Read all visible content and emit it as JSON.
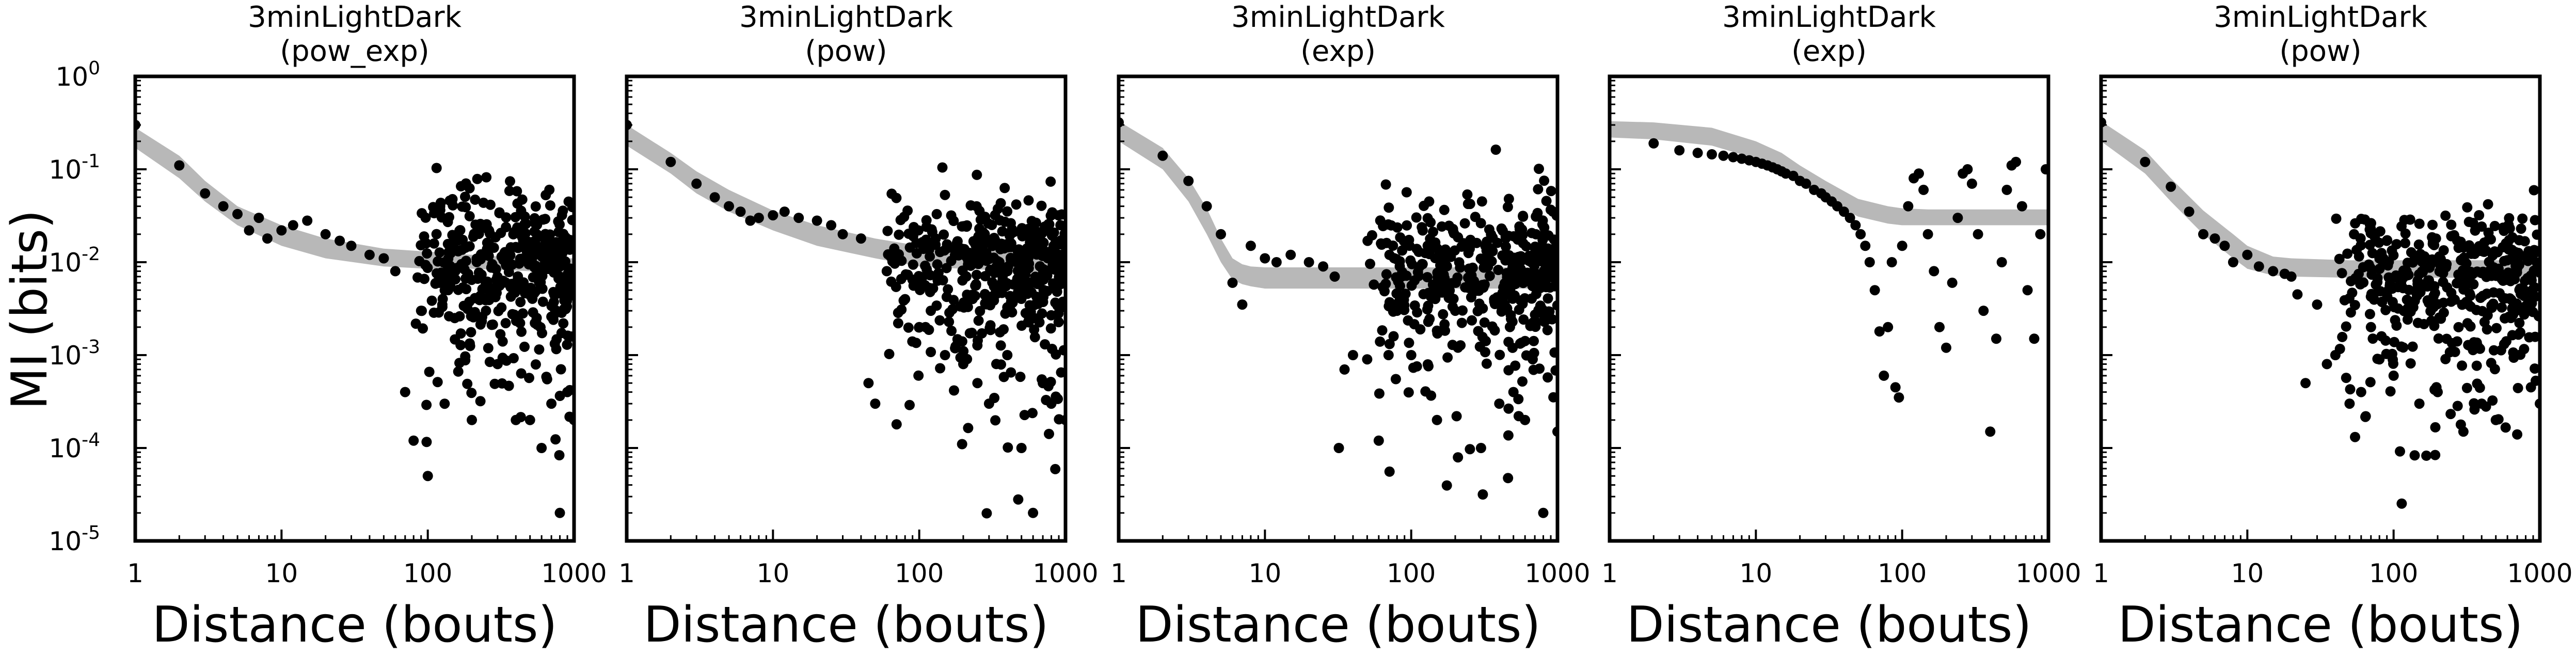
{
  "figure": {
    "ylabel": "MI (bits)",
    "colors": {
      "points": "#000000",
      "fit_band": "#b8b8b8",
      "axes": "#000000",
      "background": "#ffffff"
    }
  },
  "chart_data": [
    {
      "type": "scatter",
      "title": "3minLightDark",
      "subtitle": "(pow_exp)",
      "xlabel": "Distance (bouts)",
      "ylabel": "MI (bits)",
      "xscale": "log",
      "yscale": "log",
      "xlim": [
        1,
        1000
      ],
      "ylim": [
        1e-05,
        1
      ],
      "xticks": [
        "1",
        "10",
        "100",
        "1000"
      ],
      "yticks": [
        "10^0",
        "10^-1",
        "10^-2",
        "10^-3",
        "10^-4",
        "10^-5"
      ],
      "grid": false,
      "series": [
        {
          "kind": "points",
          "x": [
            1,
            2,
            3,
            4,
            5,
            6,
            7,
            8,
            10,
            12,
            15,
            20,
            25,
            30,
            40,
            50,
            60,
            70,
            80,
            90,
            100,
            120,
            150,
            200,
            250,
            300,
            400,
            500,
            600,
            700,
            800,
            900,
            1000
          ],
          "y": [
            0.3,
            0.11,
            0.055,
            0.04,
            0.033,
            0.022,
            0.03,
            0.018,
            0.022,
            0.025,
            0.028,
            0.02,
            0.017,
            0.015,
            0.012,
            0.011,
            0.008,
            0.0004,
            0.00012,
            0.003,
            5e-05,
            0.006,
            0.008,
            0.0002,
            0.003,
            0.0008,
            0.0002,
            0.0002,
            0.0001,
            0.0003,
            2e-05,
            0.0004,
            0.0002
          ],
          "cloud": {
            "x_from": 80,
            "x_to": 1000,
            "center": 0.011,
            "spread_decades": 0.35,
            "count": 420,
            "tail": 0.35
          }
        },
        {
          "kind": "fit_band",
          "x": [
            1,
            2,
            3,
            5,
            10,
            20,
            50,
            100,
            200,
            500,
            1000
          ],
          "lower": [
            0.17,
            0.08,
            0.045,
            0.025,
            0.015,
            0.011,
            0.009,
            0.0085,
            0.0085,
            0.008,
            0.0075
          ],
          "upper": [
            0.28,
            0.14,
            0.075,
            0.04,
            0.025,
            0.018,
            0.014,
            0.013,
            0.012,
            0.011,
            0.011
          ]
        }
      ]
    },
    {
      "type": "scatter",
      "title": "3minLightDark",
      "subtitle": "(pow)",
      "xlabel": "Distance (bouts)",
      "ylabel": "",
      "xscale": "log",
      "yscale": "log",
      "xlim": [
        1,
        1000
      ],
      "ylim": [
        1e-05,
        1
      ],
      "xticks": [
        "1",
        "10",
        "100",
        "1000"
      ],
      "yticks": [],
      "grid": false,
      "series": [
        {
          "kind": "points",
          "x": [
            1,
            2,
            3,
            4,
            5,
            6,
            7,
            8,
            10,
            12,
            15,
            20,
            25,
            30,
            40,
            45,
            50,
            60,
            70,
            80,
            100,
            120,
            150,
            200,
            250,
            300,
            400,
            500,
            600,
            700,
            800,
            1000
          ],
          "y": [
            0.3,
            0.12,
            0.07,
            0.05,
            0.04,
            0.035,
            0.028,
            0.03,
            0.032,
            0.035,
            0.03,
            0.028,
            0.025,
            0.02,
            0.018,
            0.0005,
            0.0003,
            0.008,
            0.00018,
            0.004,
            0.002,
            0.003,
            0.001,
            0.0008,
            0.0005,
            0.0003,
            0.001,
            0.0001,
            2e-05,
            0.0005,
            0.0003,
            0.0002
          ],
          "cloud": {
            "x_from": 60,
            "x_to": 1000,
            "center": 0.012,
            "spread_decades": 0.33,
            "count": 440,
            "tail": 0.3
          }
        },
        {
          "kind": "fit_band",
          "x": [
            1,
            2,
            3,
            5,
            10,
            20,
            50,
            100,
            200,
            500,
            1000
          ],
          "lower": [
            0.18,
            0.09,
            0.055,
            0.035,
            0.022,
            0.015,
            0.011,
            0.009,
            0.0085,
            0.008,
            0.0075
          ],
          "upper": [
            0.3,
            0.15,
            0.095,
            0.06,
            0.036,
            0.025,
            0.018,
            0.015,
            0.014,
            0.013,
            0.012
          ]
        }
      ]
    },
    {
      "type": "scatter",
      "title": "3minLightDark",
      "subtitle": "(exp)",
      "xlabel": "Distance (bouts)",
      "ylabel": "",
      "xscale": "log",
      "yscale": "log",
      "xlim": [
        1,
        1000
      ],
      "ylim": [
        1e-05,
        1
      ],
      "xticks": [
        "1",
        "10",
        "100",
        "1000"
      ],
      "yticks": [],
      "grid": false,
      "series": [
        {
          "kind": "points",
          "x": [
            1,
            2,
            3,
            4,
            5,
            6,
            7,
            8,
            10,
            12,
            15,
            20,
            25,
            30,
            32,
            35,
            40,
            50,
            60,
            70,
            80,
            100,
            150,
            200,
            300,
            400,
            500,
            600,
            800,
            1000
          ],
          "y": [
            0.32,
            0.14,
            0.075,
            0.04,
            0.02,
            0.006,
            0.0035,
            0.015,
            0.011,
            0.01,
            0.012,
            0.01,
            0.009,
            0.007,
            0.0001,
            0.0007,
            0.001,
            0.0009,
            0.00012,
            0.001,
            0.003,
            0.001,
            0.0002,
            0.003,
            0.0001,
            0.0003,
            0.0004,
            0.0002,
            2e-05,
            0.00015
          ],
          "cloud": {
            "x_from": 50,
            "x_to": 1000,
            "center": 0.01,
            "spread_decades": 0.35,
            "count": 430,
            "tail": 0.3
          }
        },
        {
          "kind": "fit_band",
          "x": [
            1,
            2,
            3,
            4,
            5,
            6,
            7,
            8,
            10,
            15,
            20,
            50,
            100,
            300,
            1000
          ],
          "lower": [
            0.2,
            0.1,
            0.045,
            0.02,
            0.01,
            0.0065,
            0.0058,
            0.0055,
            0.0052,
            0.0052,
            0.0052,
            0.0052,
            0.0052,
            0.0052,
            0.0052
          ],
          "upper": [
            0.33,
            0.17,
            0.08,
            0.038,
            0.018,
            0.011,
            0.0095,
            0.009,
            0.0088,
            0.0088,
            0.0088,
            0.0088,
            0.0088,
            0.0088,
            0.0088
          ]
        }
      ]
    },
    {
      "type": "scatter",
      "title": "3minLightDark",
      "subtitle": "(exp)",
      "xlabel": "Distance (bouts)",
      "ylabel": "",
      "xscale": "log",
      "yscale": "log",
      "xlim": [
        1,
        1000
      ],
      "ylim": [
        1e-05,
        1
      ],
      "xticks": [
        "1",
        "10",
        "100",
        "1000"
      ],
      "yticks": [],
      "grid": false,
      "series": [
        {
          "kind": "points",
          "x": [
            2,
            3,
            4,
            5,
            6,
            7,
            8,
            9,
            10,
            11,
            12,
            13,
            14,
            15,
            16,
            18,
            20,
            22,
            25,
            28,
            30,
            33,
            36,
            40,
            44,
            48,
            52,
            56,
            60,
            65,
            70,
            75,
            80,
            85,
            90,
            95,
            100,
            110,
            120,
            130,
            140,
            150,
            165,
            180,
            200,
            220,
            240,
            260,
            280,
            300,
            330,
            360,
            400,
            440,
            480,
            520,
            560,
            600,
            660,
            720,
            800,
            880,
            960
          ],
          "y": [
            0.19,
            0.16,
            0.15,
            0.145,
            0.14,
            0.135,
            0.13,
            0.125,
            0.12,
            0.115,
            0.11,
            0.105,
            0.1,
            0.095,
            0.09,
            0.085,
            0.075,
            0.07,
            0.06,
            0.055,
            0.05,
            0.045,
            0.04,
            0.035,
            0.03,
            0.025,
            0.02,
            0.015,
            0.01,
            0.005,
            0.0018,
            0.0006,
            0.002,
            0.01,
            0.00045,
            0.00035,
            0.015,
            0.04,
            0.08,
            0.09,
            0.06,
            0.02,
            0.008,
            0.002,
            0.0012,
            0.006,
            0.03,
            0.09,
            0.1,
            0.07,
            0.02,
            0.003,
            0.00015,
            0.0015,
            0.01,
            0.06,
            0.11,
            0.12,
            0.04,
            0.005,
            0.0015,
            0.02,
            0.1
          ],
          "cloud": null
        },
        {
          "kind": "fit_band",
          "x": [
            1,
            2,
            5,
            10,
            15,
            20,
            30,
            50,
            80,
            100,
            150,
            200,
            400,
            1000
          ],
          "lower": [
            0.22,
            0.21,
            0.18,
            0.13,
            0.095,
            0.07,
            0.047,
            0.031,
            0.026,
            0.025,
            0.025,
            0.025,
            0.025,
            0.025
          ],
          "upper": [
            0.33,
            0.32,
            0.28,
            0.2,
            0.15,
            0.11,
            0.075,
            0.048,
            0.04,
            0.038,
            0.037,
            0.037,
            0.037,
            0.037
          ]
        }
      ]
    },
    {
      "type": "scatter",
      "title": "3minLightDark",
      "subtitle": "(pow)",
      "xlabel": "Distance (bouts)",
      "ylabel": "",
      "xscale": "log",
      "yscale": "log",
      "xlim": [
        1,
        1000
      ],
      "ylim": [
        1e-05,
        1
      ],
      "xticks": [
        "1",
        "10",
        "100",
        "1000"
      ],
      "yticks": [],
      "grid": false,
      "series": [
        {
          "kind": "points",
          "x": [
            1,
            2,
            3,
            4,
            5,
            6,
            7,
            8,
            10,
            12,
            15,
            18,
            20,
            22,
            25,
            30,
            35,
            40,
            50,
            60,
            70,
            80,
            100,
            150,
            200,
            300,
            400,
            500,
            700,
            1000
          ],
          "y": [
            0.32,
            0.12,
            0.065,
            0.035,
            0.02,
            0.018,
            0.015,
            0.01,
            0.012,
            0.009,
            0.008,
            0.0075,
            0.007,
            0.0045,
            0.0005,
            0.0035,
            0.0008,
            0.001,
            0.0003,
            0.0004,
            0.002,
            0.0009,
            0.0006,
            0.0003,
            0.0004,
            0.00015,
            0.0003,
            0.0002,
            0.00014,
            0.0003
          ],
          "cloud": {
            "x_from": 40,
            "x_to": 1000,
            "center": 0.008,
            "spread_decades": 0.33,
            "count": 420,
            "tail": 0.3
          }
        },
        {
          "kind": "fit_band",
          "x": [
            1,
            2,
            3,
            5,
            8,
            10,
            15,
            20,
            50,
            100,
            1000
          ],
          "lower": [
            0.2,
            0.09,
            0.045,
            0.02,
            0.011,
            0.0085,
            0.0072,
            0.007,
            0.0068,
            0.0068,
            0.0068
          ],
          "upper": [
            0.33,
            0.16,
            0.08,
            0.036,
            0.02,
            0.015,
            0.0115,
            0.011,
            0.0105,
            0.0105,
            0.0105
          ]
        }
      ]
    }
  ]
}
